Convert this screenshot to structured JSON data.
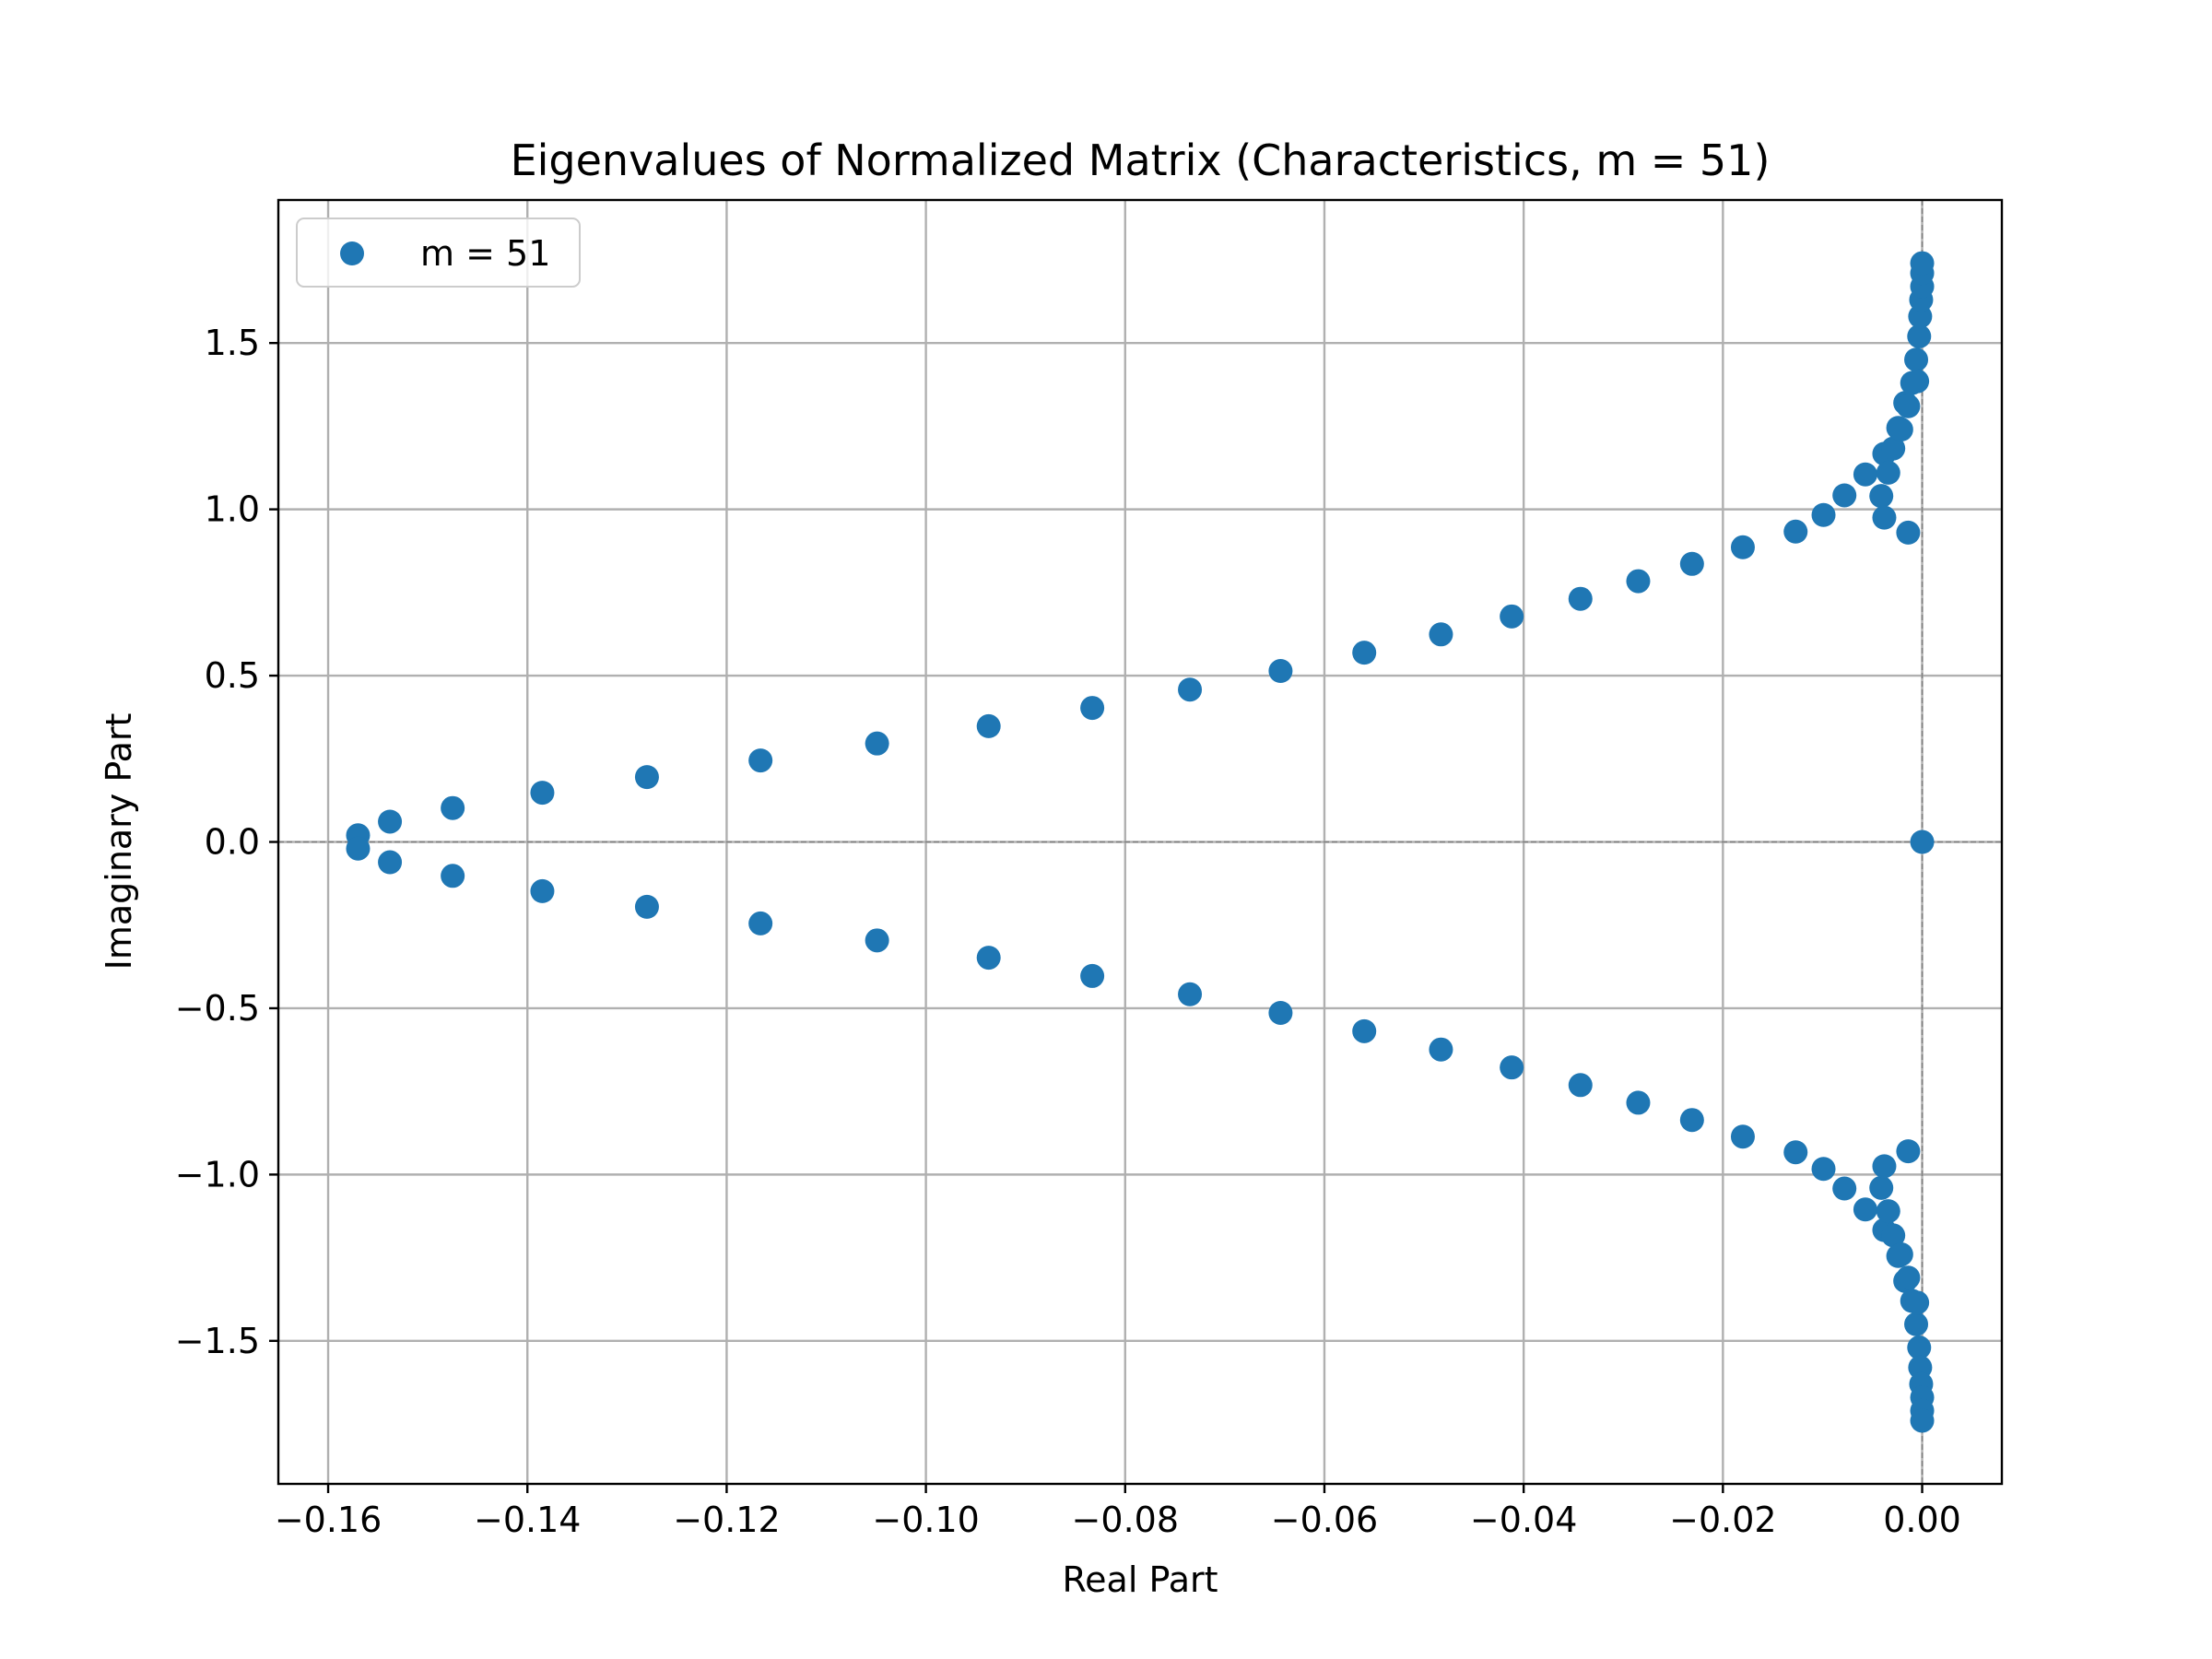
{
  "chart_data": {
    "type": "scatter",
    "title": "Eigenvalues of Normalized Matrix (Characteristics, m = 51)",
    "xlabel": "Real Part",
    "ylabel": "Imaginary Part",
    "xlim": [
      -0.165,
      0.008
    ],
    "ylim": [
      -1.93,
      1.93
    ],
    "x_ticks": [
      -0.16,
      -0.14,
      -0.12,
      -0.1,
      -0.08,
      -0.06,
      -0.04,
      -0.02,
      0.0
    ],
    "x_tick_labels": [
      "−0.16",
      "−0.14",
      "−0.12",
      "−0.10",
      "−0.08",
      "−0.06",
      "−0.04",
      "−0.02",
      "0.00"
    ],
    "y_ticks": [
      1.5,
      1.0,
      0.5,
      0.0,
      -0.5,
      -1.0,
      -1.5
    ],
    "y_tick_labels": [
      "1.5",
      "1.0",
      "0.5",
      "0.0",
      "−0.5",
      "−1.0",
      "−1.5"
    ],
    "grid": true,
    "reference_lines": {
      "x": 0,
      "y": 0,
      "style": "dashed"
    },
    "legend": {
      "position": "top-left",
      "entries": [
        "m = 51"
      ]
    },
    "colors": {
      "series": "#1f77b4",
      "grid": "#b0b0b0",
      "reference": "#808080"
    },
    "series": [
      {
        "name": "m = 51",
        "points": [
          [
            -0.157,
            0.02
          ],
          [
            -0.157,
            -0.02
          ],
          [
            -0.1538,
            0.061
          ],
          [
            -0.1538,
            -0.061
          ],
          [
            -0.1475,
            0.102
          ],
          [
            -0.1475,
            -0.102
          ],
          [
            -0.1385,
            0.148
          ],
          [
            -0.1385,
            -0.148
          ],
          [
            -0.128,
            0.195
          ],
          [
            -0.128,
            -0.195
          ],
          [
            -0.1166,
            0.245
          ],
          [
            -0.1166,
            -0.245
          ],
          [
            -0.1049,
            0.296
          ],
          [
            -0.1049,
            -0.296
          ],
          [
            -0.0937,
            0.348
          ],
          [
            -0.0937,
            -0.348
          ],
          [
            -0.0833,
            0.403
          ],
          [
            -0.0833,
            -0.403
          ],
          [
            -0.0735,
            0.458
          ],
          [
            -0.0735,
            -0.458
          ],
          [
            -0.0644,
            0.514
          ],
          [
            -0.0644,
            -0.514
          ],
          [
            -0.056,
            0.569
          ],
          [
            -0.056,
            -0.569
          ],
          [
            -0.0483,
            0.624
          ],
          [
            -0.0483,
            -0.624
          ],
          [
            -0.0412,
            0.678
          ],
          [
            -0.0412,
            -0.678
          ],
          [
            -0.0343,
            0.731
          ],
          [
            -0.0343,
            -0.731
          ],
          [
            -0.0285,
            0.784
          ],
          [
            -0.0285,
            -0.784
          ],
          [
            -0.0231,
            0.836
          ],
          [
            -0.0231,
            -0.836
          ],
          [
            -0.018,
            0.886
          ],
          [
            -0.018,
            -0.886
          ],
          [
            -0.0127,
            0.933
          ],
          [
            -0.0127,
            -0.933
          ],
          [
            -0.0099,
            0.983
          ],
          [
            -0.0099,
            -0.983
          ],
          [
            -0.0078,
            1.042
          ],
          [
            -0.0078,
            -1.042
          ],
          [
            -0.0057,
            1.105
          ],
          [
            -0.0057,
            -1.105
          ],
          [
            -0.0041,
            1.04
          ],
          [
            -0.0041,
            -1.04
          ],
          [
            -0.0038,
            0.975
          ],
          [
            -0.0038,
            -0.975
          ],
          [
            -0.0038,
            1.167
          ],
          [
            -0.0038,
            -1.167
          ],
          [
            -0.0034,
            1.11
          ],
          [
            -0.0034,
            -1.11
          ],
          [
            -0.0029,
            1.183
          ],
          [
            -0.0029,
            -1.183
          ],
          [
            -0.0024,
            1.245
          ],
          [
            -0.0024,
            -1.245
          ],
          [
            -0.0021,
            1.24
          ],
          [
            -0.0021,
            -1.24
          ],
          [
            -0.0017,
            1.32
          ],
          [
            -0.0017,
            -1.32
          ],
          [
            -0.0014,
            1.31
          ],
          [
            -0.0014,
            -1.31
          ],
          [
            -0.0014,
            0.93
          ],
          [
            -0.0014,
            -0.93
          ],
          [
            -0.001,
            1.38
          ],
          [
            -0.001,
            -1.38
          ],
          [
            -0.0006,
            1.45
          ],
          [
            -0.0006,
            -1.45
          ],
          [
            -0.0005,
            1.385
          ],
          [
            -0.0005,
            -1.385
          ],
          [
            -0.0003,
            1.52
          ],
          [
            -0.0003,
            -1.52
          ],
          [
            -0.0002,
            1.58
          ],
          [
            -0.0002,
            -1.58
          ],
          [
            -0.0001,
            1.63
          ],
          [
            -0.0001,
            -1.63
          ],
          [
            0.0,
            1.67
          ],
          [
            0.0,
            -1.67
          ],
          [
            0.0,
            1.71
          ],
          [
            0.0,
            -1.71
          ],
          [
            0.0,
            1.74
          ],
          [
            0.0,
            -1.74
          ],
          [
            0.0,
            0.0
          ]
        ]
      }
    ]
  }
}
